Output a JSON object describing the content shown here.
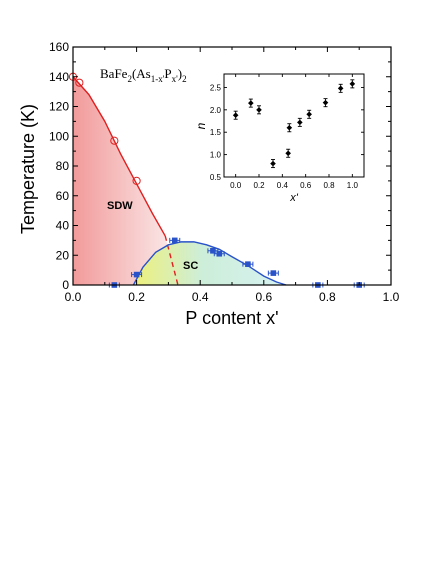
{
  "chart_data": [
    {
      "type": "scatter",
      "title": "",
      "xlabel": "P content x'",
      "ylabel": "Temperature (K)",
      "xlim": [
        0.0,
        1.0
      ],
      "ylim": [
        0,
        160
      ],
      "x_ticks": [
        "0.0",
        "0.2",
        "0.4",
        "0.6",
        "0.8",
        "1.0"
      ],
      "y_ticks": [
        "0",
        "20",
        "40",
        "60",
        "80",
        "100",
        "120",
        "140",
        "160"
      ],
      "compound_label": "BaFe2(As1-x'Px')2",
      "region_labels": {
        "sdw": "SDW",
        "sc": "SC"
      },
      "colors": {
        "sdw": "#e02020",
        "sc": "#2a52c9",
        "sdw_fill": "#f3a6a6",
        "sc_fill_left": "#e7ec8a",
        "sc_fill_right": "#a9e6e6"
      },
      "series": [
        {
          "name": "",
          "marker": "open-circle",
          "color": "#e02020",
          "x": [
            0.0,
            0.02,
            0.13,
            0.2
          ],
          "y": [
            140,
            136,
            97,
            70
          ]
        },
        {
          "name": "",
          "marker": "filled-square-with-xerror",
          "color": "#2a52c9",
          "x": [
            0.13,
            0.2,
            0.32,
            0.44,
            0.46,
            0.55,
            0.63,
            0.77,
            0.9
          ],
          "y": [
            0,
            7,
            30,
            23,
            21,
            14,
            8,
            0,
            0
          ]
        }
      ],
      "sdw_boundary": {
        "x": [
          0.0,
          0.05,
          0.1,
          0.15,
          0.2,
          0.25,
          0.29
        ],
        "y": [
          140,
          128,
          110,
          88,
          68,
          48,
          33
        ],
        "dashed_extension": {
          "x": [
            0.29,
            0.33
          ],
          "y": [
            33,
            0
          ]
        }
      },
      "sc_dome": {
        "x": [
          0.19,
          0.22,
          0.26,
          0.3,
          0.34,
          0.38,
          0.42,
          0.46,
          0.5,
          0.55,
          0.6,
          0.64,
          0.67
        ],
        "y": [
          0,
          12,
          22,
          27,
          29,
          29,
          27,
          24,
          19,
          13,
          6,
          2,
          0
        ]
      }
    },
    {
      "type": "scatter",
      "title": "",
      "xlabel": "x'",
      "ylabel": "n",
      "xlim": [
        -0.1,
        1.1
      ],
      "ylim": [
        0.5,
        2.8
      ],
      "x_ticks": [
        "0.0",
        "0.2",
        "0.4",
        "0.6",
        "0.8",
        "1.0"
      ],
      "y_ticks": [
        "0.5",
        "1.0",
        "1.5",
        "2.0",
        "2.5"
      ],
      "series": [
        {
          "name": "",
          "marker": "filled-diamond-with-yerror",
          "color": "#000000",
          "x": [
            0.0,
            0.13,
            0.2,
            0.32,
            0.45,
            0.46,
            0.55,
            0.63,
            0.77,
            0.9,
            1.0
          ],
          "y": [
            1.88,
            2.15,
            2.0,
            0.8,
            1.03,
            1.6,
            1.72,
            1.9,
            2.16,
            2.48,
            2.58
          ],
          "yerr": [
            0.09,
            0.09,
            0.09,
            0.09,
            0.09,
            0.09,
            0.09,
            0.09,
            0.09,
            0.09,
            0.09
          ]
        }
      ]
    }
  ]
}
